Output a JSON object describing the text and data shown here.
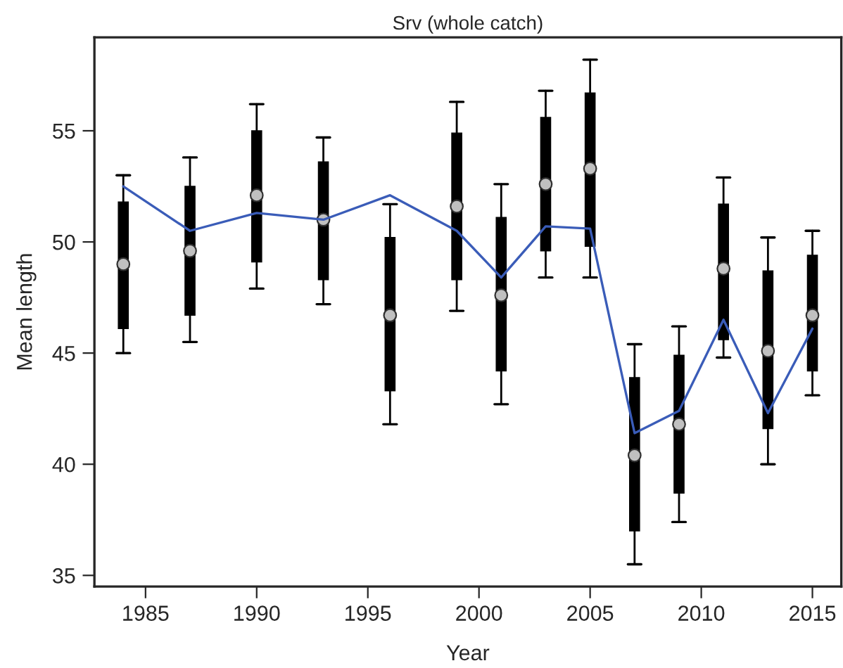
{
  "chart_data": {
    "type": "box",
    "title": "Srv (whole catch)",
    "xlabel": "Year",
    "ylabel": "Mean length",
    "xlim": [
      1982.7,
      2016.3
    ],
    "ylim": [
      34.5,
      59.2
    ],
    "xticks": [
      1985,
      1990,
      1995,
      2000,
      2005,
      2010,
      2015
    ],
    "yticks": [
      35,
      40,
      45,
      50,
      55
    ],
    "grid": false,
    "x": [
      1984,
      1987,
      1990,
      1993,
      1996,
      1999,
      2001,
      2003,
      2005,
      2007,
      2009,
      2011,
      2013,
      2015
    ],
    "boxes": [
      {
        "low": 45.0,
        "q1": 46.1,
        "median": 49.0,
        "q3": 51.8,
        "high": 53.0
      },
      {
        "low": 45.5,
        "q1": 46.7,
        "median": 49.6,
        "q3": 52.5,
        "high": 53.8
      },
      {
        "low": 47.9,
        "q1": 49.1,
        "median": 52.1,
        "q3": 55.0,
        "high": 56.2
      },
      {
        "low": 47.2,
        "q1": 48.3,
        "median": 51.0,
        "q3": 53.6,
        "high": 54.7
      },
      {
        "low": 41.8,
        "q1": 43.3,
        "median": 46.7,
        "q3": 50.2,
        "high": 51.7
      },
      {
        "low": 46.9,
        "q1": 48.3,
        "median": 51.6,
        "q3": 54.9,
        "high": 56.3
      },
      {
        "low": 42.7,
        "q1": 44.2,
        "median": 47.6,
        "q3": 51.1,
        "high": 52.6
      },
      {
        "low": 48.4,
        "q1": 49.6,
        "median": 52.6,
        "q3": 55.6,
        "high": 56.8
      },
      {
        "low": 48.4,
        "q1": 49.8,
        "median": 53.3,
        "q3": 56.7,
        "high": 58.2
      },
      {
        "low": 35.5,
        "q1": 37.0,
        "median": 40.4,
        "q3": 43.9,
        "high": 45.4
      },
      {
        "low": 37.4,
        "q1": 38.7,
        "median": 41.8,
        "q3": 44.9,
        "high": 46.2
      },
      {
        "low": 44.8,
        "q1": 45.6,
        "median": 48.8,
        "q3": 51.7,
        "high": 52.9
      },
      {
        "low": 40.0,
        "q1": 41.6,
        "median": 45.1,
        "q3": 48.7,
        "high": 50.2
      },
      {
        "low": 43.1,
        "q1": 44.2,
        "median": 46.7,
        "q3": 49.4,
        "high": 50.5
      }
    ],
    "series": [
      {
        "type": "line",
        "color": "#3a5cb8",
        "marker": "none",
        "line_style": "solid",
        "values": [
          52.5,
          50.5,
          51.3,
          51.0,
          52.1,
          50.5,
          48.4,
          50.7,
          50.6,
          41.4,
          42.4,
          46.5,
          42.3,
          46.1
        ]
      }
    ]
  }
}
